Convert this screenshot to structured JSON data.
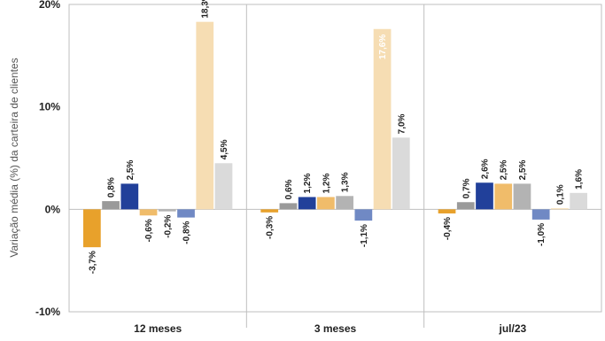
{
  "chart_data": {
    "type": "bar",
    "title": "",
    "ylabel": "Variação média (%) da carteira de clientes",
    "xlabel": "",
    "ylim": [
      -10,
      20
    ],
    "yticks": [
      -10,
      0,
      10,
      20
    ],
    "ytick_labels": [
      "-10%",
      "0%",
      "10%",
      "20%"
    ],
    "grid": false,
    "legend": "none",
    "categories": [
      "12 meses",
      "3 meses",
      "jul/23"
    ],
    "series": [
      {
        "color": "#E8A12B",
        "values": [
          -3.7,
          -0.3,
          -0.4
        ],
        "labels": [
          "-3,7%",
          "-0,3%",
          "-0,4%"
        ]
      },
      {
        "color": "#9A9A9A",
        "values": [
          0.8,
          0.6,
          0.7
        ],
        "labels": [
          "0,8%",
          "0,6%",
          "0,7%"
        ]
      },
      {
        "color": "#21409A",
        "values": [
          2.5,
          1.2,
          2.6
        ],
        "labels": [
          "2,5%",
          "1,2%",
          "2,6%"
        ]
      },
      {
        "color": "#F0BC6A",
        "values": [
          -0.6,
          1.2,
          2.5
        ],
        "labels": [
          "-0,6%",
          "1,2%",
          "2,5%"
        ]
      },
      {
        "color": "#B3B3B3",
        "values": [
          -0.2,
          1.3,
          2.5
        ],
        "labels": [
          "-0,2%",
          "1,3%",
          "2,5%"
        ]
      },
      {
        "color": "#7089C4",
        "values": [
          -0.8,
          -1.1,
          -1.0
        ],
        "labels": [
          "-0,8%",
          "-1,1%",
          "-1,0%"
        ]
      },
      {
        "color": "#F6DDB3",
        "values": [
          18.3,
          17.6,
          0.1
        ],
        "labels": [
          "18,3%",
          "17,6%",
          "0,1%"
        ],
        "label_inside": [
          false,
          true,
          false
        ]
      },
      {
        "color": "#DADADA",
        "values": [
          4.5,
          7.0,
          1.6
        ],
        "labels": [
          "4,5%",
          "7,0%",
          "1,6%"
        ]
      }
    ]
  }
}
